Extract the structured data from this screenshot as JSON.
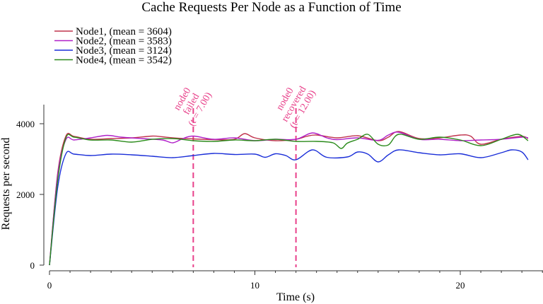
{
  "chart_data": {
    "type": "line",
    "title": "Cache Requests Per Node as a Function of Time",
    "xlabel": "Time (s)",
    "ylabel": "Requests per second",
    "xlim": [
      0,
      24
    ],
    "ylim": [
      0,
      4500
    ],
    "xticks": [
      0,
      10,
      20
    ],
    "xtick_labels": [
      "0",
      "10",
      "20"
    ],
    "yticks": [
      0,
      2000,
      4000
    ],
    "ytick_labels": [
      "0",
      "2000",
      "4000"
    ],
    "grid": false,
    "legend_position": "top-left",
    "series": [
      {
        "name": "Node1, (mean = 3604)",
        "color": "#c0334d",
        "x": [
          0,
          0.4,
          0.8,
          1.2,
          2,
          3,
          4,
          5,
          5.5,
          6,
          7,
          8,
          9,
          9.5,
          10,
          11,
          12,
          12.5,
          13,
          14,
          15,
          16,
          16.5,
          17,
          18,
          19,
          20,
          20.5,
          21,
          22,
          23,
          23.3
        ],
        "y": [
          0,
          2600,
          3650,
          3640,
          3560,
          3580,
          3600,
          3650,
          3630,
          3600,
          3570,
          3550,
          3560,
          3720,
          3600,
          3520,
          3560,
          3640,
          3680,
          3600,
          3660,
          3520,
          3620,
          3780,
          3580,
          3600,
          3680,
          3650,
          3420,
          3560,
          3640,
          3580
        ]
      },
      {
        "name": "Node2, (mean = 3583)",
        "color": "#b020c8",
        "x": [
          0,
          0.4,
          0.8,
          1.2,
          2,
          2.8,
          3.5,
          4.5,
          5.5,
          6,
          6.5,
          7,
          8,
          9,
          10,
          11,
          12,
          12.8,
          13.5,
          14,
          15,
          16,
          16.5,
          17,
          18,
          19,
          20,
          21,
          22,
          23,
          23.3
        ],
        "y": [
          0,
          2550,
          3550,
          3540,
          3600,
          3670,
          3620,
          3580,
          3540,
          3460,
          3580,
          3650,
          3560,
          3600,
          3520,
          3560,
          3560,
          3740,
          3600,
          3550,
          3600,
          3530,
          3680,
          3760,
          3560,
          3560,
          3520,
          3540,
          3560,
          3620,
          3600
        ]
      },
      {
        "name": "Node3, (mean = 3124)",
        "color": "#1a2ed8",
        "x": [
          0,
          0.4,
          0.8,
          1.2,
          2,
          3,
          4,
          5,
          6,
          7,
          8,
          9,
          10,
          10.5,
          11,
          11.5,
          12,
          12.8,
          13.5,
          14.5,
          15,
          15.5,
          16,
          16.5,
          17,
          18,
          19,
          20,
          21,
          22,
          22.5,
          23,
          23.3
        ],
        "y": [
          0,
          2200,
          3150,
          3140,
          3100,
          3140,
          3120,
          3080,
          3040,
          3100,
          3160,
          3130,
          3140,
          3050,
          3150,
          3100,
          2980,
          3260,
          3050,
          3060,
          3200,
          3140,
          2920,
          3120,
          3260,
          3180,
          3120,
          3150,
          3040,
          3180,
          3260,
          3200,
          2980
        ]
      },
      {
        "name": "Node4, (mean = 3542)",
        "color": "#2a8a1a",
        "x": [
          0,
          0.4,
          0.8,
          1.2,
          2,
          3,
          4,
          5,
          6,
          7,
          8,
          9,
          10,
          11,
          12,
          13,
          13.8,
          14.2,
          14.5,
          15,
          15.5,
          16,
          16.5,
          17,
          18,
          19,
          20,
          21,
          22,
          22.8,
          23.3
        ],
        "y": [
          0,
          2400,
          3600,
          3620,
          3540,
          3540,
          3480,
          3560,
          3580,
          3520,
          3500,
          3540,
          3520,
          3560,
          3500,
          3500,
          3460,
          3300,
          3450,
          3560,
          3700,
          3420,
          3400,
          3700,
          3560,
          3620,
          3540,
          3380,
          3560,
          3700,
          3520
        ]
      }
    ],
    "annotations": [
      {
        "x": 7,
        "lines": [
          "node0",
          "failed",
          "(t = 7.00)"
        ],
        "color": "#e8408a"
      },
      {
        "x": 12,
        "lines": [
          "node0",
          "recovered",
          "(t = 12.00)"
        ],
        "color": "#e8408a"
      }
    ]
  }
}
